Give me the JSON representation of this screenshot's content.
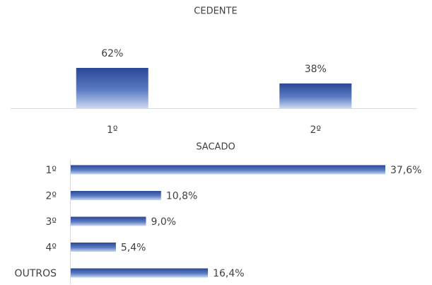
{
  "chart_data": [
    {
      "type": "bar",
      "title": "CEDENTE",
      "categories": [
        "1º",
        "2º"
      ],
      "values": [
        62,
        38
      ],
      "value_labels": [
        "62%",
        "38%"
      ],
      "color": "#2f4f9e"
    },
    {
      "type": "hbar",
      "title": "SACADO",
      "categories": [
        "1º",
        "2º",
        "3º",
        "4º",
        "OUTROS"
      ],
      "values": [
        37.6,
        10.8,
        9.0,
        5.4,
        16.4
      ],
      "value_labels": [
        "37,6%",
        "10,8%",
        "9,0%",
        "5,4%",
        "16,4%"
      ],
      "color": "#2f4f9e"
    }
  ]
}
